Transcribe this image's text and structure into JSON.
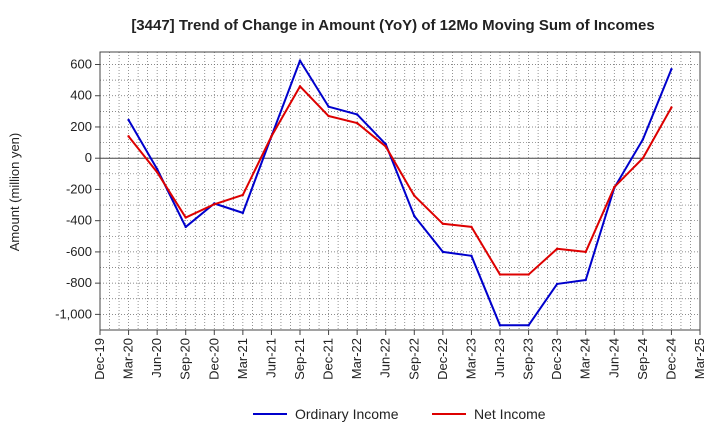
{
  "chart_data": {
    "type": "line",
    "title": "[3447]  Trend of Change in Amount (YoY) of 12Mo Moving Sum of Incomes",
    "xlabel": "",
    "ylabel": "Amount (million yen)",
    "ylim": [
      -1100,
      680
    ],
    "yticks": [
      600,
      400,
      200,
      0,
      -200,
      -400,
      -600,
      -800,
      -1000
    ],
    "ytick_labels": [
      "600",
      "400",
      "200",
      "0",
      "-200",
      "-400",
      "-600",
      "-800",
      "-1,000"
    ],
    "categories": [
      "Dec-19",
      "Mar-20",
      "Jun-20",
      "Sep-20",
      "Dec-20",
      "Mar-21",
      "Jun-21",
      "Sep-21",
      "Dec-21",
      "Mar-22",
      "Jun-22",
      "Sep-22",
      "Dec-22",
      "Mar-23",
      "Jun-23",
      "Sep-23",
      "Dec-23",
      "Mar-24",
      "Jun-24",
      "Sep-24",
      "Dec-24",
      "Mar-25"
    ],
    "series": [
      {
        "name": "Ordinary Income",
        "color": "#0000cc",
        "values": [
          null,
          245,
          -70,
          -440,
          -290,
          -350,
          140,
          625,
          330,
          280,
          90,
          -370,
          -600,
          -625,
          -1070,
          -1070,
          -805,
          -780,
          -190,
          120,
          570,
          null
        ]
      },
      {
        "name": "Net Income",
        "color": "#dd0000",
        "values": [
          null,
          140,
          -90,
          -380,
          -295,
          -235,
          140,
          460,
          270,
          225,
          75,
          -240,
          -420,
          -440,
          -745,
          -745,
          -580,
          -600,
          -185,
          0,
          325,
          null
        ]
      }
    ],
    "grid": true,
    "legend": "bottom"
  }
}
